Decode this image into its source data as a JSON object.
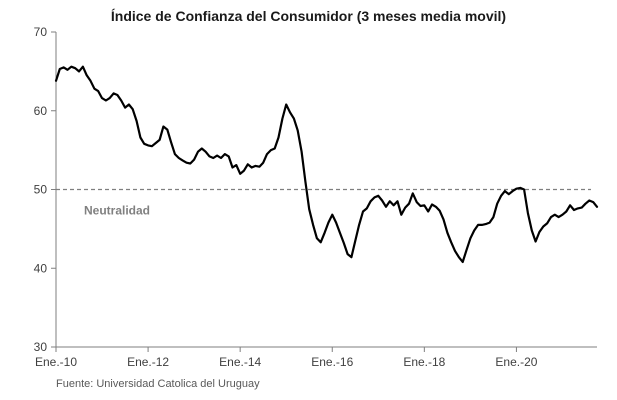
{
  "chart_data": {
    "type": "line",
    "title": "Índice de Confianza del Consumidor (3 meses media movil)",
    "xlabel": "",
    "ylabel": "",
    "ylim": [
      30,
      70
    ],
    "yticks": [
      30,
      40,
      50,
      60,
      70
    ],
    "xlim": [
      "2010-01",
      "2021-10"
    ],
    "xticks": [
      {
        "date": "2010-01",
        "label": "Ene.-10"
      },
      {
        "date": "2012-01",
        "label": "Ene.-12"
      },
      {
        "date": "2014-01",
        "label": "Ene.-14"
      },
      {
        "date": "2016-01",
        "label": "Ene.-16"
      },
      {
        "date": "2018-01",
        "label": "Ene.-18"
      },
      {
        "date": "2020-01",
        "label": "Ene.-20"
      }
    ],
    "grid": false,
    "reference_line": {
      "value": 50,
      "label": "Neutralidad",
      "style": "dashed"
    },
    "source": "Fuente: Universidad Catolica del Uruguay",
    "series": [
      {
        "color": "#000000",
        "points": [
          [
            "2010-01",
            63.8
          ],
          [
            "2010-02",
            65.3
          ],
          [
            "2010-03",
            65.5
          ],
          [
            "2010-04",
            65.2
          ],
          [
            "2010-05",
            65.6
          ],
          [
            "2010-06",
            65.4
          ],
          [
            "2010-07",
            65.0
          ],
          [
            "2010-08",
            65.6
          ],
          [
            "2010-09",
            64.5
          ],
          [
            "2010-10",
            63.8
          ],
          [
            "2010-11",
            62.8
          ],
          [
            "2010-12",
            62.5
          ],
          [
            "2011-01",
            61.6
          ],
          [
            "2011-02",
            61.3
          ],
          [
            "2011-03",
            61.6
          ],
          [
            "2011-04",
            62.2
          ],
          [
            "2011-05",
            62.0
          ],
          [
            "2011-06",
            61.3
          ],
          [
            "2011-07",
            60.4
          ],
          [
            "2011-08",
            60.8
          ],
          [
            "2011-09",
            60.2
          ],
          [
            "2011-10",
            58.7
          ],
          [
            "2011-11",
            56.6
          ],
          [
            "2011-12",
            55.8
          ],
          [
            "2012-01",
            55.6
          ],
          [
            "2012-02",
            55.5
          ],
          [
            "2012-03",
            55.9
          ],
          [
            "2012-04",
            56.3
          ],
          [
            "2012-05",
            58.0
          ],
          [
            "2012-06",
            57.6
          ],
          [
            "2012-07",
            56.0
          ],
          [
            "2012-08",
            54.5
          ],
          [
            "2012-09",
            54.0
          ],
          [
            "2012-10",
            53.7
          ],
          [
            "2012-11",
            53.4
          ],
          [
            "2012-12",
            53.3
          ],
          [
            "2013-01",
            53.8
          ],
          [
            "2013-02",
            54.8
          ],
          [
            "2013-03",
            55.2
          ],
          [
            "2013-04",
            54.8
          ],
          [
            "2013-05",
            54.2
          ],
          [
            "2013-06",
            54.0
          ],
          [
            "2013-07",
            54.3
          ],
          [
            "2013-08",
            54.0
          ],
          [
            "2013-09",
            54.5
          ],
          [
            "2013-10",
            54.2
          ],
          [
            "2013-11",
            52.8
          ],
          [
            "2013-12",
            53.1
          ],
          [
            "2014-01",
            52.0
          ],
          [
            "2014-02",
            52.4
          ],
          [
            "2014-03",
            53.2
          ],
          [
            "2014-04",
            52.8
          ],
          [
            "2014-05",
            53.0
          ],
          [
            "2014-06",
            52.9
          ],
          [
            "2014-07",
            53.4
          ],
          [
            "2014-08",
            54.5
          ],
          [
            "2014-09",
            55.0
          ],
          [
            "2014-10",
            55.2
          ],
          [
            "2014-11",
            56.6
          ],
          [
            "2014-12",
            59.0
          ],
          [
            "2015-01",
            60.8
          ],
          [
            "2015-02",
            59.8
          ],
          [
            "2015-03",
            59.0
          ],
          [
            "2015-04",
            57.5
          ],
          [
            "2015-05",
            54.8
          ],
          [
            "2015-06",
            51.0
          ],
          [
            "2015-07",
            47.5
          ],
          [
            "2015-08",
            45.5
          ],
          [
            "2015-09",
            43.8
          ],
          [
            "2015-10",
            43.3
          ],
          [
            "2015-11",
            44.5
          ],
          [
            "2015-12",
            45.8
          ],
          [
            "2016-01",
            46.8
          ],
          [
            "2016-02",
            45.8
          ],
          [
            "2016-03",
            44.5
          ],
          [
            "2016-04",
            43.2
          ],
          [
            "2016-05",
            41.8
          ],
          [
            "2016-06",
            41.4
          ],
          [
            "2016-07",
            43.5
          ],
          [
            "2016-08",
            45.5
          ],
          [
            "2016-09",
            47.2
          ],
          [
            "2016-10",
            47.6
          ],
          [
            "2016-11",
            48.5
          ],
          [
            "2016-12",
            49.0
          ],
          [
            "2017-01",
            49.2
          ],
          [
            "2017-02",
            48.6
          ],
          [
            "2017-03",
            47.8
          ],
          [
            "2017-04",
            48.5
          ],
          [
            "2017-05",
            48.0
          ],
          [
            "2017-06",
            48.5
          ],
          [
            "2017-07",
            46.8
          ],
          [
            "2017-08",
            47.7
          ],
          [
            "2017-09",
            48.2
          ],
          [
            "2017-10",
            49.5
          ],
          [
            "2017-11",
            48.4
          ],
          [
            "2017-12",
            47.9
          ],
          [
            "2018-01",
            48.0
          ],
          [
            "2018-02",
            47.2
          ],
          [
            "2018-03",
            48.1
          ],
          [
            "2018-04",
            47.8
          ],
          [
            "2018-05",
            47.3
          ],
          [
            "2018-06",
            46.2
          ],
          [
            "2018-07",
            44.5
          ],
          [
            "2018-08",
            43.3
          ],
          [
            "2018-09",
            42.2
          ],
          [
            "2018-10",
            41.4
          ],
          [
            "2018-11",
            40.8
          ],
          [
            "2018-12",
            42.3
          ],
          [
            "2019-01",
            43.8
          ],
          [
            "2019-02",
            44.8
          ],
          [
            "2019-03",
            45.5
          ],
          [
            "2019-04",
            45.5
          ],
          [
            "2019-05",
            45.6
          ],
          [
            "2019-06",
            45.8
          ],
          [
            "2019-07",
            46.5
          ],
          [
            "2019-08",
            48.2
          ],
          [
            "2019-09",
            49.2
          ],
          [
            "2019-10",
            49.8
          ],
          [
            "2019-11",
            49.4
          ],
          [
            "2019-12",
            49.8
          ],
          [
            "2020-01",
            50.1
          ],
          [
            "2020-02",
            50.2
          ],
          [
            "2020-03",
            50.0
          ],
          [
            "2020-04",
            47.0
          ],
          [
            "2020-05",
            44.8
          ],
          [
            "2020-06",
            43.4
          ],
          [
            "2020-07",
            44.6
          ],
          [
            "2020-08",
            45.3
          ],
          [
            "2020-09",
            45.7
          ],
          [
            "2020-10",
            46.5
          ],
          [
            "2020-11",
            46.8
          ],
          [
            "2020-12",
            46.5
          ],
          [
            "2021-01",
            46.8
          ],
          [
            "2021-02",
            47.2
          ],
          [
            "2021-03",
            48.0
          ],
          [
            "2021-04",
            47.4
          ],
          [
            "2021-05",
            47.6
          ],
          [
            "2021-06",
            47.7
          ],
          [
            "2021-07",
            48.2
          ],
          [
            "2021-08",
            48.6
          ],
          [
            "2021-09",
            48.4
          ],
          [
            "2021-10",
            47.8
          ]
        ]
      }
    ]
  }
}
